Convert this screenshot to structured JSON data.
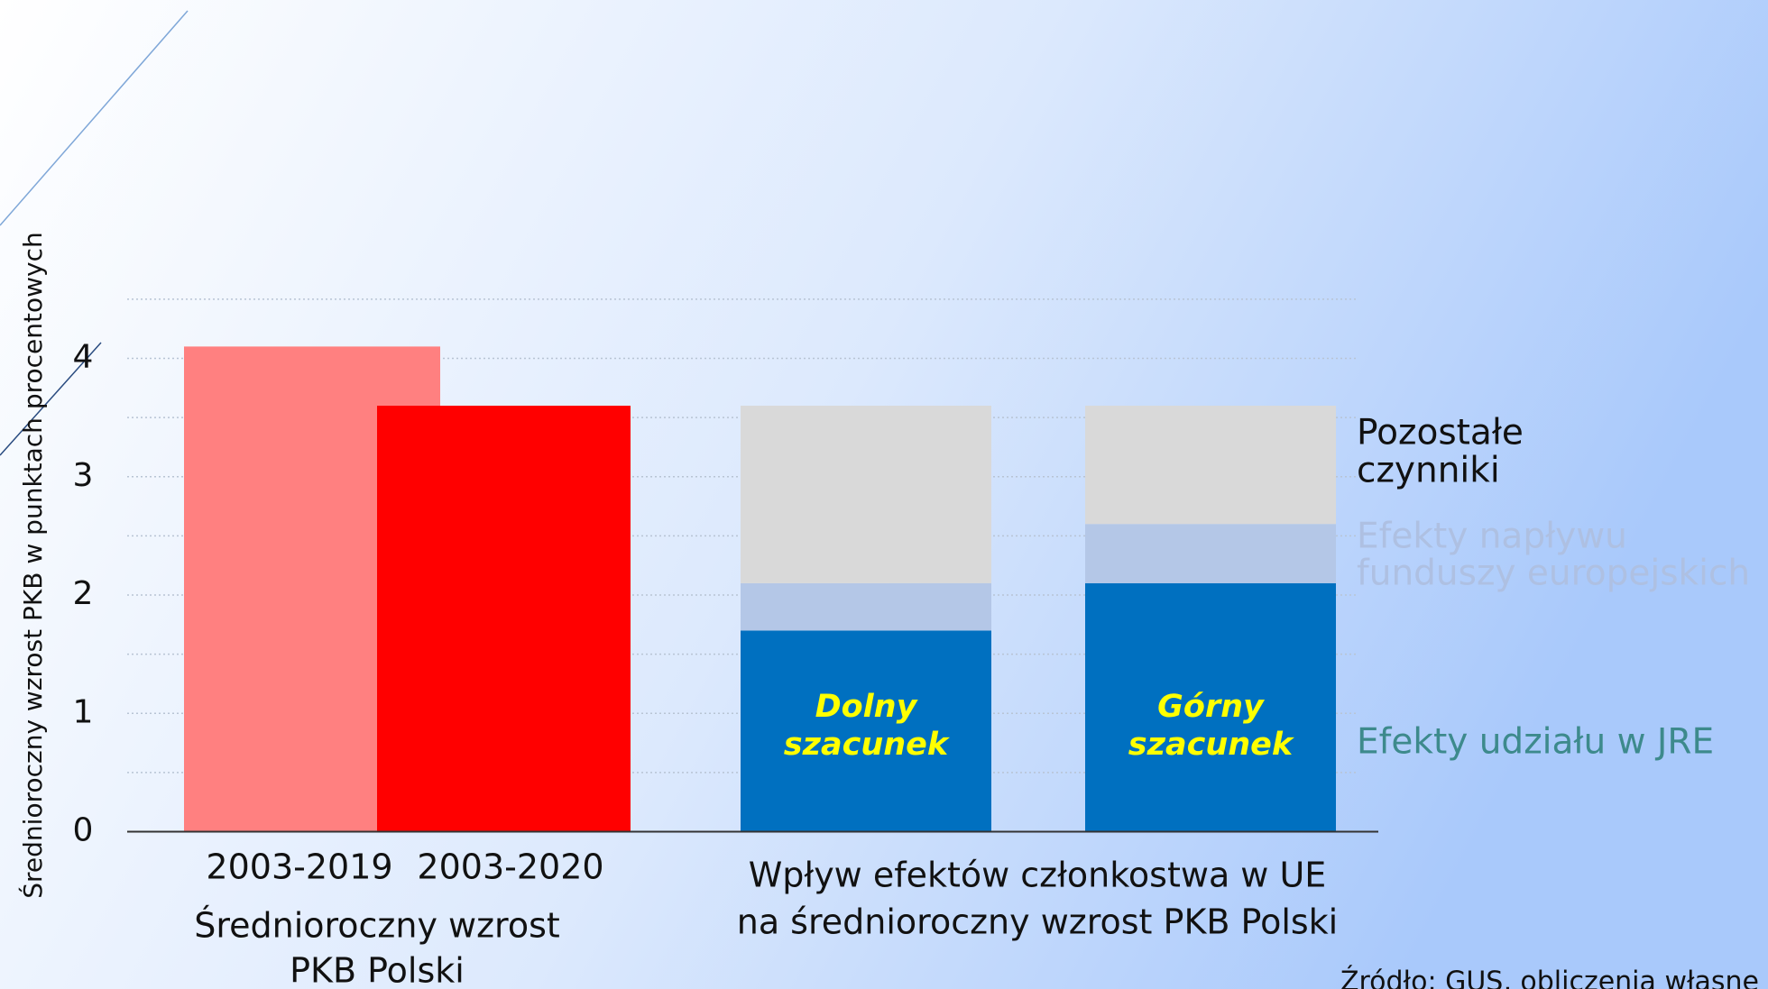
{
  "chart_data": {
    "type": "bar",
    "y_label": "Średnioroczny wzrost PKB w punktach procentowych",
    "ylim": [
      0,
      4.5
    ],
    "yticks": [
      0,
      1,
      2,
      3,
      4
    ],
    "minor_yticks": [
      0.5,
      1.5,
      2.5,
      3.5,
      4.5
    ],
    "grid": true,
    "categories": [
      "2003-2019",
      "2003-2020"
    ],
    "values": [
      4.1,
      3.6
    ],
    "colors": [
      "#ff8080",
      "#ff0000"
    ],
    "group_label": [
      "Średnioroczny wzrost",
      "PKB Polski"
    ],
    "stacked": {
      "categories": [
        [
          "Dolny",
          "szacunek"
        ],
        [
          "Górny",
          "szacunek"
        ]
      ],
      "series": [
        {
          "name": [
            "Efekty udziału w JRE"
          ],
          "color": "#0070c0",
          "label_color": "#3d8a8c",
          "values": [
            1.7,
            2.1
          ]
        },
        {
          "name": [
            "Efekty napływu",
            "funduszy europejskich"
          ],
          "color": "#b4c7e7",
          "label_color": "#aec0e2",
          "values": [
            0.4,
            0.5
          ]
        },
        {
          "name": [
            "Pozostałe",
            "czynniki"
          ],
          "color": "#d9d9d9",
          "label_color": "#111111",
          "values": [
            1.5,
            1.0
          ]
        }
      ],
      "group_label": [
        "Wpływ efektów członkostwa w UE",
        "na średnioroczny wzrost PKB Polski"
      ]
    },
    "source": "Źródło: GUS, obliczenia własne"
  }
}
